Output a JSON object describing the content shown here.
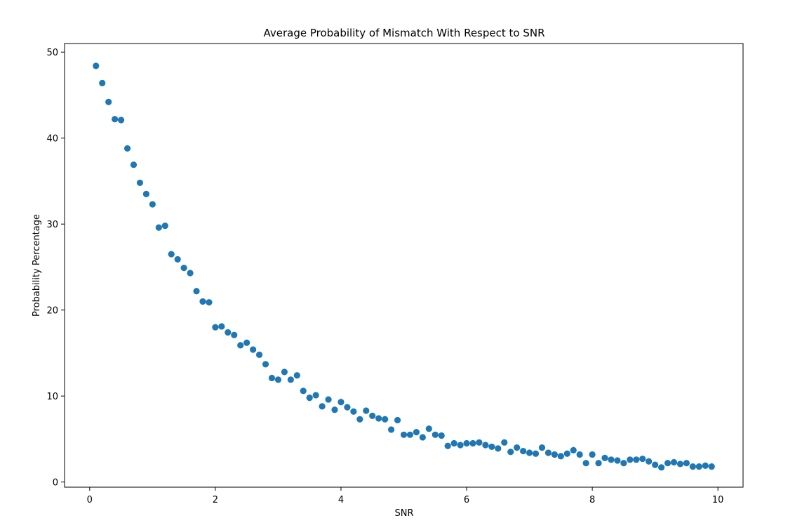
{
  "chart_data": {
    "type": "scatter",
    "title": "Average Probability of Mismatch With Respect to SNR",
    "xlabel": "SNR",
    "ylabel": "Probability Percentage",
    "xlim": [
      -0.4,
      10.4
    ],
    "ylim": [
      -0.6,
      51.0
    ],
    "xticks": [
      0,
      2,
      4,
      6,
      8,
      10
    ],
    "yticks": [
      0,
      10,
      20,
      30,
      40,
      50
    ],
    "grid": false,
    "marker_color": "#1f77b4",
    "series": [
      {
        "x": [
          0.1,
          0.2,
          0.3,
          0.4,
          0.5,
          0.6,
          0.7,
          0.8,
          0.9,
          1.0,
          1.1,
          1.2,
          1.3,
          1.4,
          1.5,
          1.6,
          1.7,
          1.8,
          1.9,
          2.0,
          2.1,
          2.2,
          2.3,
          2.4,
          2.5,
          2.6,
          2.7,
          2.8,
          2.9,
          3.0,
          3.1,
          3.2,
          3.3,
          3.4,
          3.5,
          3.6,
          3.7,
          3.8,
          3.9,
          4.0,
          4.1,
          4.2,
          4.3,
          4.4,
          4.5,
          4.6,
          4.7,
          4.8,
          4.9,
          5.0,
          5.1,
          5.2,
          5.3,
          5.4,
          5.5,
          5.6,
          5.7,
          5.8,
          5.9,
          6.0,
          6.1,
          6.2,
          6.3,
          6.4,
          6.5,
          6.6,
          6.7,
          6.8,
          6.9,
          7.0,
          7.1,
          7.2,
          7.3,
          7.4,
          7.5,
          7.6,
          7.7,
          7.8,
          7.9,
          8.0,
          8.1,
          8.2,
          8.3,
          8.4,
          8.5,
          8.6,
          8.7,
          8.8,
          8.9,
          9.0,
          9.1,
          9.2,
          9.3,
          9.4,
          9.5,
          9.6,
          9.7,
          9.8,
          9.9
        ],
        "y": [
          48.4,
          46.4,
          44.2,
          42.2,
          42.1,
          38.8,
          36.9,
          34.8,
          33.5,
          32.3,
          29.6,
          29.8,
          26.5,
          25.9,
          24.9,
          24.3,
          22.2,
          21.0,
          20.9,
          18.0,
          18.1,
          17.4,
          17.1,
          15.9,
          16.2,
          15.4,
          14.8,
          13.7,
          12.1,
          11.9,
          12.8,
          11.9,
          12.4,
          10.6,
          9.8,
          10.1,
          8.8,
          9.6,
          8.4,
          9.3,
          8.7,
          8.2,
          7.3,
          8.3,
          7.7,
          7.4,
          7.3,
          6.1,
          7.2,
          5.5,
          5.5,
          5.8,
          5.2,
          6.2,
          5.5,
          5.4,
          4.2,
          4.5,
          4.3,
          4.5,
          4.5,
          4.6,
          4.3,
          4.1,
          3.9,
          4.6,
          3.5,
          4.0,
          3.6,
          3.4,
          3.3,
          4.0,
          3.4,
          3.2,
          3.0,
          3.3,
          3.7,
          3.2,
          2.2,
          3.2,
          2.2,
          2.8,
          2.6,
          2.5,
          2.2,
          2.6,
          2.6,
          2.7,
          2.4,
          2.0,
          1.7,
          2.2,
          2.3,
          2.1,
          2.2,
          1.8,
          1.8,
          1.9,
          1.8
        ]
      }
    ]
  }
}
